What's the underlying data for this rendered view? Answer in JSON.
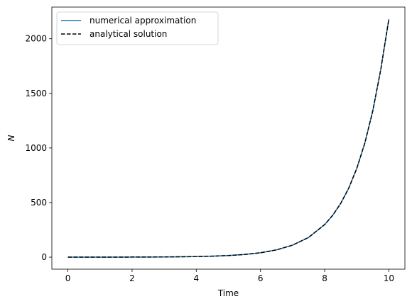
{
  "chart_data": {
    "type": "line",
    "title": "",
    "xlabel": "Time",
    "ylabel": "N",
    "xlim": [
      -0.5,
      10.5
    ],
    "ylim": [
      -110,
      2290
    ],
    "xticks": [
      0,
      2,
      4,
      6,
      8,
      10
    ],
    "yticks": [
      0,
      500,
      1000,
      1500,
      2000
    ],
    "xtick_labels": [
      "0",
      "2",
      "4",
      "6",
      "8",
      "10"
    ],
    "ytick_labels": [
      "0",
      "500",
      "1000",
      "1500",
      "2000"
    ],
    "grid": false,
    "legend": {
      "placement": "top-left",
      "entries": [
        "numerical approximation",
        "analytical solution"
      ]
    },
    "series": [
      {
        "name": "numerical approximation",
        "color": "#1f77b4",
        "style": "solid",
        "x": [
          0,
          0.5,
          1,
          1.5,
          2,
          2.5,
          3,
          3.5,
          4,
          4.5,
          5,
          5.5,
          6,
          6.5,
          7,
          7.5,
          8,
          8.25,
          8.5,
          8.75,
          9,
          9.25,
          9.5,
          9.75,
          10
        ],
        "y": [
          0.1,
          0.15,
          0.27,
          0.45,
          0.74,
          1.22,
          2.0,
          3.3,
          5.5,
          9.0,
          14.8,
          24.5,
          40.3,
          66.5,
          110,
          181,
          298,
          383,
          492,
          632,
          812,
          1043,
          1340,
          1721,
          2180
        ]
      },
      {
        "name": "analytical solution",
        "color": "#000000",
        "style": "dashed",
        "x": [
          0,
          0.5,
          1,
          1.5,
          2,
          2.5,
          3,
          3.5,
          4,
          4.5,
          5,
          5.5,
          6,
          6.5,
          7,
          7.5,
          8,
          8.25,
          8.5,
          8.75,
          9,
          9.25,
          9.5,
          9.75,
          10
        ],
        "y": [
          0.1,
          0.15,
          0.27,
          0.45,
          0.74,
          1.22,
          2.0,
          3.3,
          5.5,
          9.0,
          14.8,
          24.5,
          40.3,
          66.5,
          110,
          181,
          298,
          383,
          492,
          632,
          812,
          1043,
          1340,
          1721,
          2180
        ]
      }
    ]
  }
}
